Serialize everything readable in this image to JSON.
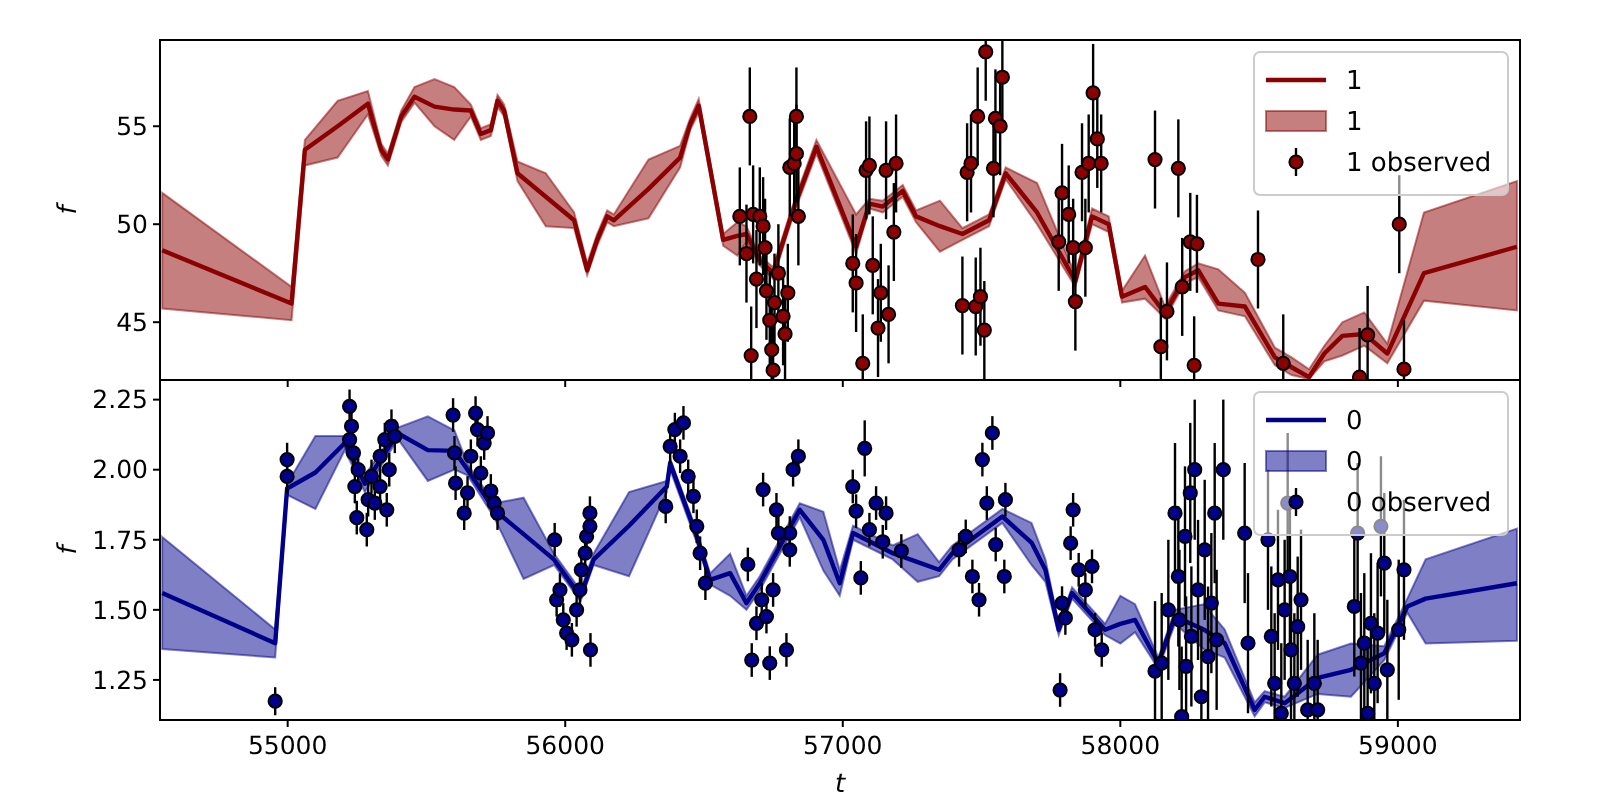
{
  "chart_data": [
    {
      "type": "line",
      "ylabel": "f",
      "xlim": [
        54540,
        59440
      ],
      "ylim": [
        42.05,
        59.4
      ],
      "xticks": [
        55000,
        56000,
        57000,
        58000,
        59000
      ],
      "yticks": [
        45,
        50,
        55
      ],
      "tick_labels": "y",
      "legend": "top right",
      "series": [
        {
          "type": "line",
          "name": "1",
          "color": "#8b0000",
          "x": [
            54548,
            55014,
            55062,
            55180,
            55289,
            55337,
            55361,
            55409,
            55457,
            55529,
            55600,
            55660,
            55696,
            55732,
            55756,
            55780,
            55828,
            55930,
            56032,
            56079,
            56115,
            56151,
            56175,
            56300,
            56414,
            56450,
            56481,
            56569,
            56620,
            56653,
            56701,
            56749,
            56809,
            56833,
            56905,
            57048,
            57096,
            57144,
            57216,
            57264,
            57350,
            57431,
            57527,
            57587,
            57700,
            57838,
            57898,
            57958,
            58006,
            58089,
            58161,
            58233,
            58281,
            58353,
            58449,
            58557,
            58617,
            58680,
            58735,
            58800,
            58879,
            58962,
            59094,
            59429
          ],
          "values": [
            48.67,
            45.95,
            53.8,
            55.0,
            56.15,
            53.8,
            53.3,
            55.5,
            56.5,
            56.0,
            55.85,
            55.8,
            54.6,
            54.8,
            56.3,
            55.8,
            52.6,
            51.4,
            50.2,
            47.65,
            49.2,
            50.4,
            50.2,
            51.8,
            53.4,
            55.1,
            56.05,
            49.2,
            49.4,
            49.5,
            48.16,
            47.5,
            50.2,
            51.2,
            53.95,
            48.85,
            51.05,
            50.9,
            51.7,
            50.4,
            49.9,
            49.5,
            50.2,
            52.6,
            50.6,
            47.1,
            50.4,
            50.0,
            46.3,
            46.8,
            45.45,
            47.3,
            47.65,
            45.95,
            45.8,
            43.2,
            42.7,
            42.2,
            43.4,
            44.3,
            44.4,
            43.4,
            47.5,
            48.85
          ],
          "lower": [
            45.7,
            45.1,
            53.0,
            53.4,
            55.6,
            53.5,
            53.0,
            55.2,
            56.2,
            55.0,
            54.3,
            55.5,
            54.3,
            54.5,
            56.0,
            55.5,
            52.2,
            49.9,
            49.8,
            47.4,
            48.9,
            50.1,
            49.9,
            50.3,
            52.9,
            54.8,
            55.7,
            48.9,
            48.4,
            49.1,
            47.9,
            47.2,
            49.9,
            50.9,
            53.6,
            48.5,
            50.8,
            50.6,
            51.4,
            50.1,
            48.6,
            49.2,
            49.9,
            52.3,
            50.0,
            46.8,
            50.0,
            49.6,
            46.0,
            46.2,
            45.2,
            47.0,
            47.3,
            45.6,
            45.3,
            42.8,
            42.3,
            42.1,
            43.0,
            43.3,
            43.8,
            42.9,
            46.1,
            45.6
          ],
          "upper": [
            51.6,
            46.8,
            54.3,
            56.3,
            56.8,
            54.1,
            53.6,
            55.8,
            57.0,
            57.4,
            57.0,
            56.1,
            54.9,
            55.1,
            56.6,
            56.1,
            53.2,
            52.6,
            50.6,
            48.0,
            49.5,
            50.7,
            50.5,
            53.3,
            54.0,
            55.4,
            56.4,
            49.5,
            50.1,
            49.9,
            48.4,
            47.8,
            50.5,
            51.5,
            54.3,
            50.5,
            51.3,
            51.2,
            52.0,
            50.7,
            51.2,
            49.8,
            50.5,
            52.9,
            52.1,
            47.4,
            50.8,
            50.4,
            46.6,
            48.4,
            45.8,
            47.6,
            48.0,
            47.7,
            46.5,
            43.7,
            43.2,
            42.6,
            43.8,
            45.0,
            45.5,
            43.9,
            50.6,
            52.2
          ]
        },
        {
          "type": "scatter",
          "name": "1 observed",
          "marker": "circle",
          "color": "#8b0000",
          "x": [
            56629,
            56653,
            56665,
            56670,
            56677,
            56689,
            56701,
            56713,
            56720,
            56725,
            56737,
            56744,
            56749,
            56754,
            56768,
            56785,
            56792,
            56802,
            56809,
            56825,
            56833,
            56833,
            56840,
            57036,
            57048,
            57072,
            57084,
            57096,
            57108,
            57127,
            57137,
            57156,
            57165,
            57184,
            57192,
            57431,
            57448,
            57462,
            57479,
            57486,
            57496,
            57510,
            57515,
            57543,
            57550,
            57567,
            57575,
            57778,
            57790,
            57814,
            57830,
            57838,
            57862,
            57874,
            57886,
            57902,
            57917,
            57931,
            58125,
            58146,
            58168,
            58209,
            58223,
            58252,
            58266,
            58276,
            58496,
            58587,
            58862,
            58891,
            59005,
            59022
          ],
          "values": [
            50.4,
            48.5,
            55.5,
            43.3,
            50.5,
            47.2,
            50.4,
            49.9,
            48.8,
            46.6,
            45.1,
            43.6,
            42.55,
            46.0,
            47.5,
            45.3,
            44.4,
            46.5,
            52.9,
            53.1,
            55.5,
            53.6,
            50.4,
            48.0,
            47.0,
            42.9,
            52.75,
            53.0,
            47.9,
            44.7,
            46.5,
            52.75,
            45.4,
            49.6,
            53.1,
            45.85,
            52.65,
            53.1,
            45.8,
            55.5,
            46.3,
            44.6,
            58.8,
            52.85,
            55.4,
            55.0,
            57.5,
            49.1,
            51.6,
            50.5,
            48.8,
            46.05,
            52.65,
            48.8,
            53.1,
            56.7,
            54.35,
            53.1,
            53.3,
            43.75,
            45.55,
            52.85,
            46.8,
            49.1,
            42.8,
            49.0,
            48.2,
            42.9,
            42.2,
            44.35,
            50.0,
            42.6
          ],
          "errors": [
            2.5,
            2.5,
            2.5,
            [
              42.1,
              45.8
            ],
            2.5,
            2.5,
            2.5,
            2.5,
            2.5,
            2.5,
            2.5,
            [
              42.1,
              46.1
            ],
            [
              42.1,
              45.05
            ],
            2.5,
            2.5,
            2.5,
            [
              42.1,
              46.9
            ],
            2.5,
            2.5,
            2.5,
            2.5,
            2.5,
            2.5,
            2.5,
            2.5,
            [
              42.1,
              45.4
            ],
            2.5,
            2.5,
            2.5,
            2.5,
            2.5,
            2.5,
            2.5,
            2.5,
            2.5,
            2.5,
            2.5,
            2.5,
            2.5,
            2.5,
            2.5,
            2.5,
            [
              56.3,
              59.35
            ],
            2.5,
            2.5,
            2.5,
            [
              55.0,
              59.35
            ],
            2.5,
            2.5,
            2.5,
            2.5,
            2.5,
            2.5,
            2.5,
            2.5,
            2.5,
            2.5,
            2.5,
            2.5,
            [
              42.1,
              46.25
            ],
            2.5,
            2.5,
            2.5,
            2.5,
            [
              42.1,
              45.3
            ],
            2.5,
            2.5,
            [
              42.1,
              45.4
            ],
            [
              42.1,
              44.7
            ],
            [
              42.1,
              46.85
            ],
            2.5,
            [
              42.1,
              45.1
            ]
          ]
        }
      ]
    },
    {
      "type": "line",
      "xlabel": "t",
      "ylabel": "f",
      "xlim": [
        54540,
        59440
      ],
      "ylim": [
        1.107,
        2.32
      ],
      "xticks": [
        55000,
        56000,
        57000,
        58000,
        59000
      ],
      "yticks": [
        {
          "value": 1.25,
          "label": "1.25"
        },
        {
          "value": 1.5,
          "label": "1.50"
        },
        {
          "value": 1.75,
          "label": "1.75"
        },
        {
          "value": 2.0,
          "label": "2.00"
        },
        {
          "value": 2.25,
          "label": "2.25"
        }
      ],
      "legend": "top right",
      "series": [
        {
          "type": "line",
          "name": "0",
          "color": "#00008b",
          "x": [
            54548,
            54955,
            54998,
            55100,
            55206,
            55278,
            55397,
            55505,
            55601,
            55648,
            55744,
            55850,
            55960,
            56055,
            56102,
            56230,
            56366,
            56378,
            56474,
            56522,
            56594,
            56653,
            56701,
            56845,
            56930,
            56989,
            57037,
            57180,
            57270,
            57347,
            57395,
            57575,
            57680,
            57730,
            57778,
            57826,
            57945,
            58000,
            58053,
            58137,
            58197,
            58300,
            58376,
            58484,
            58520,
            58592,
            58711,
            58831,
            58951,
            59034,
            59100,
            59429
          ],
          "values": [
            1.56,
            1.381,
            1.933,
            1.99,
            2.095,
            1.95,
            2.13,
            2.07,
            2.067,
            2.0,
            1.857,
            1.77,
            1.679,
            1.548,
            1.679,
            1.8,
            1.94,
            2.024,
            1.762,
            1.607,
            1.631,
            1.524,
            1.595,
            1.857,
            1.75,
            1.595,
            1.774,
            1.702,
            1.67,
            1.643,
            1.702,
            1.833,
            1.74,
            1.643,
            1.429,
            1.56,
            1.429,
            1.45,
            1.464,
            1.31,
            1.476,
            1.43,
            1.381,
            1.143,
            1.19,
            1.167,
            1.257,
            1.286,
            1.345,
            1.512,
            1.54,
            1.595
          ],
          "lower": [
            1.36,
            1.33,
            1.91,
            1.86,
            2.07,
            1.92,
            2.11,
            1.96,
            2.0,
            1.98,
            1.83,
            1.61,
            1.66,
            1.53,
            1.66,
            1.62,
            1.92,
            2.0,
            1.74,
            1.59,
            1.55,
            1.5,
            1.57,
            1.83,
            1.64,
            1.55,
            1.75,
            1.68,
            1.6,
            1.62,
            1.68,
            1.81,
            1.66,
            1.6,
            1.41,
            1.54,
            1.41,
            1.38,
            1.42,
            1.29,
            1.45,
            1.36,
            1.33,
            1.12,
            1.17,
            1.15,
            1.2,
            1.19,
            1.32,
            1.49,
            1.38,
            1.39
          ],
          "upper": [
            1.76,
            1.43,
            1.95,
            2.12,
            2.12,
            1.98,
            2.15,
            2.19,
            2.14,
            2.02,
            1.88,
            1.9,
            1.7,
            1.57,
            1.7,
            1.92,
            1.96,
            2.04,
            1.78,
            1.63,
            1.7,
            1.55,
            1.62,
            1.88,
            1.85,
            1.64,
            1.8,
            1.73,
            1.77,
            1.67,
            1.73,
            1.86,
            1.81,
            1.68,
            1.45,
            1.58,
            1.45,
            1.55,
            1.52,
            1.33,
            1.5,
            1.52,
            1.43,
            1.17,
            1.21,
            1.19,
            1.34,
            1.38,
            1.37,
            1.54,
            1.68,
            1.79
          ]
        },
        {
          "type": "scatter",
          "name": "0 observed",
          "marker": "circle",
          "color": "#00008b",
          "x": [
            54955,
            54998,
            54998,
            55223,
            55230,
            55223,
            55237,
            55242,
            55254,
            55249,
            55285,
            55290,
            55302,
            55314,
            55333,
            55333,
            55350,
            55357,
            55366,
            55374,
            55386,
            55596,
            55601,
            55605,
            55636,
            55648,
            55660,
            55677,
            55684,
            55696,
            55708,
            55720,
            55732,
            55744,
            55756,
            55962,
            55969,
            55981,
            55993,
            56005,
            56024,
            56041,
            56053,
            56058,
            56072,
            56077,
            56089,
            56091,
            56089,
            56362,
            56378,
            56395,
            56414,
            56426,
            56443,
            56462,
            56474,
            56486,
            56505,
            56658,
            56672,
            56689,
            56708,
            56725,
            56737,
            56713,
            56797,
            56761,
            56821,
            56809,
            56749,
            56768,
            56809,
            56840,
            57036,
            57048,
            57065,
            57079,
            57096,
            57120,
            57144,
            57156,
            57211,
            57419,
            57443,
            57467,
            57491,
            57503,
            57519,
            57539,
            57551,
            57582,
            57586,
            57783,
            57790,
            57802,
            57821,
            57830,
            57850,
            57874,
            57898,
            57909,
            57933,
            58125,
            58149,
            58173,
            58197,
            58209,
            58213,
            58221,
            58233,
            58237,
            58252,
            58256,
            58268,
            58280,
            58292,
            58304,
            58316,
            58328,
            58340,
            58347,
            58371,
            58448,
            58460,
            58532,
            58544,
            58556,
            58568,
            58580,
            58592,
            58603,
            58611,
            58615,
            58627,
            58639,
            58651,
            58675,
            58699,
            58711,
            58843,
            58855,
            58867,
            58879,
            58891,
            58903,
            58915,
            58927,
            58939,
            58951,
            58962,
            59003,
            59022
          ],
          "values": [
            1.174,
            2.036,
            1.976,
            2.226,
            2.155,
            2.107,
            2.06,
            1.94,
            2.0,
            1.829,
            1.786,
            1.893,
            1.976,
            1.881,
            1.94,
            2.048,
            2.107,
            1.857,
            2.0,
            2.155,
            2.119,
            2.195,
            2.06,
            1.952,
            1.845,
            1.917,
            2.048,
            2.202,
            2.143,
            1.988,
            2.095,
            2.131,
            1.924,
            1.881,
            1.845,
            1.75,
            1.536,
            1.571,
            1.464,
            1.417,
            1.393,
            1.5,
            1.571,
            1.643,
            1.702,
            1.762,
            1.798,
            1.357,
            1.845,
            1.869,
            2.083,
            2.143,
            2.048,
            2.167,
            1.976,
            1.905,
            1.798,
            1.702,
            1.595,
            1.662,
            1.321,
            1.452,
            1.536,
            1.476,
            1.31,
            1.929,
            1.357,
            1.857,
            2.0,
            1.774,
            1.571,
            1.774,
            1.714,
            2.048,
            1.94,
            1.852,
            1.614,
            2.076,
            1.786,
            1.881,
            1.743,
            1.845,
            1.71,
            1.714,
            1.762,
            1.619,
            1.536,
            2.036,
            1.881,
            2.131,
            1.733,
            1.619,
            1.893,
            1.214,
            1.524,
            1.471,
            1.738,
            1.857,
            1.643,
            1.571,
            1.655,
            1.429,
            1.357,
            1.281,
            1.31,
            1.5,
            1.845,
            1.619,
            1.464,
            1.119,
            1.762,
            1.298,
            1.917,
            1.405,
            2.0,
            1.571,
            1.19,
            1.714,
            1.333,
            1.524,
            1.845,
            1.393,
            2.0,
            1.774,
            1.381,
            1.75,
            1.405,
            1.238,
            1.607,
            1.131,
            1.5,
            1.881,
            1.619,
            1.357,
            1.238,
            1.44,
            1.536,
            1.143,
            1.238,
            1.143,
            1.512,
            1.774,
            1.31,
            1.381,
            1.131,
            1.452,
            1.238,
            1.417,
            1.798,
            1.667,
            1.286,
            1.429,
            1.643
          ],
          "errors": [
            0.05,
            0.06,
            0.06,
            0.06,
            0.06,
            0.06,
            0.06,
            0.06,
            0.06,
            0.06,
            0.06,
            0.06,
            0.06,
            0.06,
            0.06,
            0.06,
            0.06,
            0.06,
            0.06,
            0.06,
            0.06,
            0.06,
            0.06,
            0.06,
            0.06,
            0.06,
            0.06,
            0.06,
            0.06,
            0.06,
            0.06,
            0.06,
            0.06,
            0.06,
            0.06,
            0.06,
            0.06,
            0.06,
            0.06,
            0.06,
            0.06,
            0.06,
            0.06,
            0.06,
            0.06,
            0.06,
            0.06,
            0.06,
            0.06,
            0.06,
            0.06,
            0.06,
            0.06,
            0.06,
            0.06,
            0.06,
            0.06,
            0.06,
            0.06,
            0.06,
            0.06,
            0.06,
            0.06,
            0.06,
            0.06,
            0.06,
            0.06,
            0.06,
            0.06,
            0.06,
            0.06,
            0.06,
            0.06,
            0.06,
            0.06,
            0.06,
            0.06,
            0.1,
            0.06,
            0.06,
            0.06,
            0.06,
            0.06,
            0.06,
            0.06,
            0.06,
            0.06,
            0.06,
            0.06,
            0.06,
            0.06,
            0.06,
            0.06,
            0.06,
            0.06,
            0.06,
            0.06,
            0.06,
            0.06,
            0.06,
            0.06,
            0.06,
            0.06,
            [
              1.11,
              1.531
            ],
            [
              1.11,
              1.56
            ],
            0.25,
            0.25,
            0.25,
            0.25,
            [
              1.11,
              1.369
            ],
            0.25,
            [
              1.11,
              1.548
            ],
            0.25,
            0.25,
            0.25,
            0.25,
            [
              1.11,
              1.44
            ],
            0.25,
            [
              1.11,
              1.583
            ],
            0.25,
            0.25,
            0.25,
            0.25,
            0.25,
            0.25,
            0.25,
            0.25,
            [
              1.11,
              1.488
            ],
            0.25,
            [
              1.11,
              1.381
            ],
            0.25,
            0.25,
            0.25,
            [
              1.11,
              1.607
            ],
            [
              1.11,
              1.488
            ],
            0.25,
            0.25,
            [
              1.11,
              1.393
            ],
            [
              1.11,
              1.488
            ],
            [
              1.11,
              1.393
            ],
            0.25,
            0.25,
            [
              1.11,
              1.56
            ],
            0.25,
            [
              1.11,
              1.381
            ],
            0.25,
            [
              1.11,
              1.488
            ],
            0.25,
            0.25,
            0.25,
            [
              1.11,
              1.536
            ],
            0.25,
            0.25
          ]
        }
      ]
    }
  ]
}
